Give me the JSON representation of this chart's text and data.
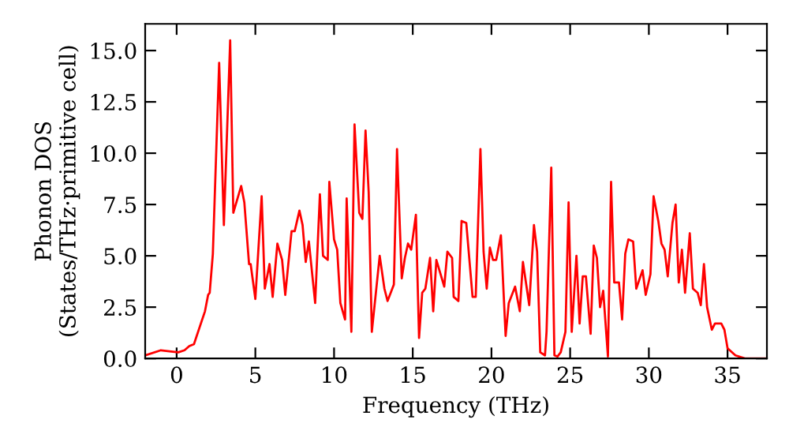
{
  "chart_data": {
    "type": "line",
    "xlabel": "Frequency (THz)",
    "ylabel": "Phonon DOS\n(States/THz·primitive cell)",
    "xlim": [
      -2,
      37.5
    ],
    "ylim": [
      0,
      16.3
    ],
    "xticks": [
      0,
      5,
      10,
      15,
      20,
      25,
      30,
      35
    ],
    "yticks": [
      {
        "value": 0,
        "label": "0.0"
      },
      {
        "value": 2.5,
        "label": "2.5"
      },
      {
        "value": 5,
        "label": "5.0"
      },
      {
        "value": 7.5,
        "label": "7.5"
      },
      {
        "value": 10,
        "label": "10.0"
      },
      {
        "value": 12.5,
        "label": "12.5"
      },
      {
        "value": 15,
        "label": "15.0"
      }
    ],
    "grid": false,
    "marker": "none",
    "line_style": "solid",
    "series": [
      {
        "color": "#ff0000",
        "x": [
          -2.0,
          -1.0,
          0.1,
          0.5,
          0.8,
          1.1,
          1.8,
          2.0,
          2.1,
          2.3,
          2.7,
          3.0,
          3.4,
          3.6,
          4.1,
          4.3,
          4.6,
          4.7,
          5.0,
          5.4,
          5.6,
          5.9,
          6.1,
          6.4,
          6.7,
          6.9,
          7.3,
          7.5,
          7.8,
          8.0,
          8.2,
          8.4,
          8.8,
          9.1,
          9.3,
          9.6,
          9.7,
          10.0,
          10.2,
          10.4,
          10.7,
          10.8,
          11.1,
          11.3,
          11.6,
          11.8,
          12.0,
          12.2,
          12.4,
          12.9,
          13.2,
          13.4,
          13.8,
          14.0,
          14.3,
          14.5,
          14.7,
          14.9,
          15.2,
          15.4,
          15.6,
          15.8,
          16.1,
          16.3,
          16.5,
          17.0,
          17.2,
          17.5,
          17.6,
          17.9,
          18.1,
          18.4,
          18.8,
          19.0,
          19.3,
          19.5,
          19.7,
          19.9,
          20.1,
          20.3,
          20.6,
          20.9,
          21.1,
          21.5,
          21.8,
          22.0,
          22.4,
          22.7,
          22.9,
          23.1,
          23.4,
          23.5,
          23.8,
          24.0,
          24.2,
          24.4,
          24.7,
          24.9,
          25.1,
          25.4,
          25.6,
          25.8,
          26.0,
          26.3,
          26.5,
          26.7,
          26.9,
          27.1,
          27.4,
          27.6,
          27.8,
          28.1,
          28.3,
          28.5,
          28.7,
          29.0,
          29.2,
          29.6,
          29.8,
          30.1,
          30.3,
          30.6,
          30.8,
          31.0,
          31.2,
          31.5,
          31.7,
          31.9,
          32.1,
          32.3,
          32.6,
          32.8,
          33.1,
          33.3,
          33.5,
          33.7,
          34.0,
          34.2,
          34.6,
          34.8,
          35.0,
          35.5,
          36.1,
          37.5
        ],
        "values": [
          0.15,
          0.4,
          0.3,
          0.4,
          0.6,
          0.7,
          2.3,
          3.1,
          3.2,
          5.1,
          14.4,
          6.5,
          15.5,
          7.1,
          8.4,
          7.6,
          4.6,
          4.6,
          2.9,
          7.9,
          3.4,
          4.6,
          3.0,
          5.6,
          4.8,
          3.1,
          6.2,
          6.2,
          7.2,
          6.5,
          4.7,
          5.7,
          2.7,
          8.0,
          5.0,
          4.8,
          8.6,
          5.8,
          5.3,
          2.7,
          1.9,
          7.8,
          1.3,
          11.4,
          7.1,
          6.8,
          11.1,
          8.1,
          1.3,
          5.0,
          3.4,
          2.8,
          3.6,
          10.2,
          3.9,
          4.9,
          5.6,
          5.3,
          7.0,
          1.0,
          3.2,
          3.4,
          4.9,
          2.3,
          4.8,
          3.5,
          5.2,
          4.9,
          3.0,
          2.8,
          6.7,
          6.6,
          3.0,
          3.0,
          10.2,
          5.2,
          3.4,
          5.4,
          4.8,
          4.8,
          6.0,
          1.1,
          2.7,
          3.5,
          2.3,
          4.7,
          2.6,
          6.5,
          5.2,
          0.3,
          0.15,
          1.3,
          9.3,
          0.15,
          0.1,
          0.3,
          1.3,
          7.6,
          1.3,
          5.0,
          1.7,
          4.0,
          4.0,
          1.2,
          5.5,
          4.9,
          2.5,
          3.3,
          0.1,
          8.6,
          3.7,
          3.7,
          1.9,
          5.1,
          5.8,
          5.7,
          3.4,
          4.3,
          3.1,
          4.1,
          7.9,
          6.7,
          5.6,
          5.3,
          4.0,
          6.6,
          7.5,
          3.7,
          5.3,
          3.2,
          6.1,
          3.4,
          3.2,
          2.6,
          4.6,
          2.5,
          1.4,
          1.7,
          1.7,
          1.4,
          0.5,
          0.15,
          0.0,
          0.0
        ]
      }
    ]
  }
}
